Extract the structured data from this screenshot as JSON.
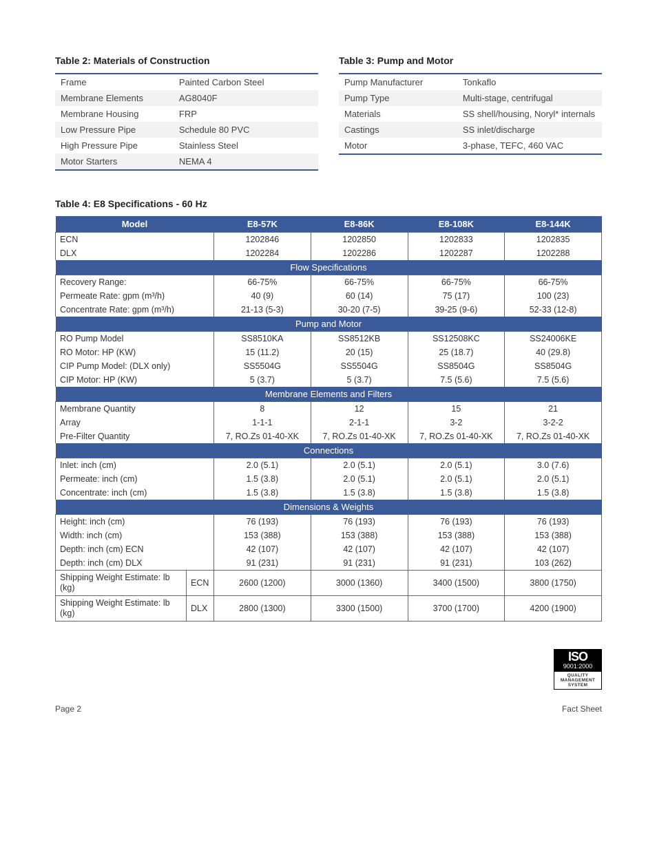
{
  "table2": {
    "caption": "Table 2: Materials of Construction",
    "rows": [
      [
        "Frame",
        "Painted Carbon Steel"
      ],
      [
        "Membrane Elements",
        "AG8040F"
      ],
      [
        "Membrane Housing",
        "FRP"
      ],
      [
        "Low Pressure Pipe",
        "Schedule 80 PVC"
      ],
      [
        "High Pressure Pipe",
        "Stainless Steel"
      ],
      [
        "Motor Starters",
        "NEMA 4"
      ]
    ]
  },
  "table3": {
    "caption": "Table 3: Pump and Motor",
    "rows": [
      [
        "Pump Manufacturer",
        "Tonkaflo"
      ],
      [
        "Pump Type",
        "Multi-stage, centrifugal"
      ],
      [
        "Materials",
        "SS shell/housing, Noryl* internals"
      ],
      [
        "Castings",
        "SS inlet/discharge"
      ],
      [
        "Motor",
        "3-phase, TEFC, 460 VAC"
      ]
    ]
  },
  "table4": {
    "caption": "Table 4: E8 Specifications - 60 Hz",
    "header_label": "Model",
    "models": [
      "E8-57K",
      "E8-86K",
      "E8-108K",
      "E8-144K"
    ],
    "topRows": [
      {
        "label": "ECN",
        "values": [
          "1202846",
          "1202850",
          "1202833",
          "1202835"
        ]
      },
      {
        "label": "DLX",
        "values": [
          "1202284",
          "1202286",
          "1202287",
          "1202288"
        ]
      }
    ],
    "sections": [
      {
        "title": "Flow Specifications",
        "rows": [
          {
            "label": "Recovery Range:",
            "values": [
              "66-75%",
              "66-75%",
              "66-75%",
              "66-75%"
            ]
          },
          {
            "label": "Permeate Rate: gpm (m³/h)",
            "values": [
              "40 (9)",
              "60 (14)",
              "75 (17)",
              "100 (23)"
            ]
          },
          {
            "label": "Concentrate Rate: gpm (m³/h)",
            "values": [
              "21-13 (5-3)",
              "30-20 (7-5)",
              "39-25 (9-6)",
              "52-33 (12-8)"
            ]
          }
        ]
      },
      {
        "title": "Pump and Motor",
        "rows": [
          {
            "label": "RO Pump Model",
            "values": [
              "SS8510KA",
              "SS8512KB",
              "SS12508KC",
              "SS24006KE"
            ]
          },
          {
            "label": "RO Motor: HP (KW)",
            "values": [
              "15 (11.2)",
              "20 (15)",
              "25 (18.7)",
              "40 (29.8)"
            ]
          },
          {
            "label": "CIP Pump Model: (DLX only)",
            "values": [
              "SS5504G",
              "SS5504G",
              "SS8504G",
              "SS8504G"
            ]
          },
          {
            "label": "CIP Motor: HP (KW)",
            "values": [
              "5 (3.7)",
              "5 (3.7)",
              "7.5 (5.6)",
              "7.5 (5.6)"
            ]
          }
        ]
      },
      {
        "title": "Membrane Elements and Filters",
        "rows": [
          {
            "label": "Membrane Quantity",
            "values": [
              "8",
              "12",
              "15",
              "21"
            ]
          },
          {
            "label": "Array",
            "values": [
              "1-1-1",
              "2-1-1",
              "3-2",
              "3-2-2"
            ]
          },
          {
            "label": "Pre-Filter Quantity",
            "values": [
              "7, RO.Zs 01-40-XK",
              "7, RO.Zs 01-40-XK",
              "7, RO.Zs 01-40-XK",
              "7, RO.Zs 01-40-XK"
            ]
          }
        ]
      },
      {
        "title": "Connections",
        "rows": [
          {
            "label": "Inlet: inch (cm)",
            "values": [
              "2.0 (5.1)",
              "2.0 (5.1)",
              "2.0 (5.1)",
              "3.0 (7.6)"
            ]
          },
          {
            "label": "Permeate: inch (cm)",
            "values": [
              "1.5 (3.8)",
              "2.0 (5.1)",
              "2.0 (5.1)",
              "2.0 (5.1)"
            ]
          },
          {
            "label": "Concentrate: inch (cm)",
            "values": [
              "1.5 (3.8)",
              "1.5 (3.8)",
              "1.5 (3.8)",
              "1.5 (3.8)"
            ]
          }
        ]
      },
      {
        "title": "Dimensions & Weights",
        "rows": [
          {
            "label": "Height: inch (cm)",
            "values": [
              "76 (193)",
              "76 (193)",
              "76 (193)",
              "76 (193)"
            ]
          },
          {
            "label": "Width: inch (cm)",
            "values": [
              "153 (388)",
              "153 (388)",
              "153 (388)",
              "153 (388)"
            ]
          },
          {
            "label": "Depth: inch (cm) ECN",
            "values": [
              "42 (107)",
              "42 (107)",
              "42 (107)",
              "42 (107)"
            ]
          },
          {
            "label": "Depth: inch (cm) DLX",
            "values": [
              "91 (231)",
              "91 (231)",
              "91 (231)",
              "103 (262)"
            ]
          }
        ],
        "subRows": [
          {
            "label": "Shipping Weight Estimate: lb (kg)",
            "sub": "ECN",
            "values": [
              "2600 (1200)",
              "3000 (1360)",
              "3400 (1500)",
              "3800 (1750)"
            ]
          },
          {
            "label": "Shipping Weight Estimate: lb (kg)",
            "sub": "DLX",
            "values": [
              "2800 (1300)",
              "3300 (1500)",
              "3700 (1700)",
              "4200 (1900)"
            ]
          }
        ]
      }
    ]
  },
  "iso": {
    "top": "ISO",
    "num": "9001:2000",
    "l1": "QUALITY",
    "l2": "MANAGEMENT",
    "l3": "SYSTEM"
  },
  "footer": {
    "left": "Page 2",
    "right": "Fact Sheet"
  },
  "colors": {
    "brand": "#3a5a9a",
    "border": "#666666",
    "alt_row": "#f2f2f2",
    "text": "#333333"
  }
}
